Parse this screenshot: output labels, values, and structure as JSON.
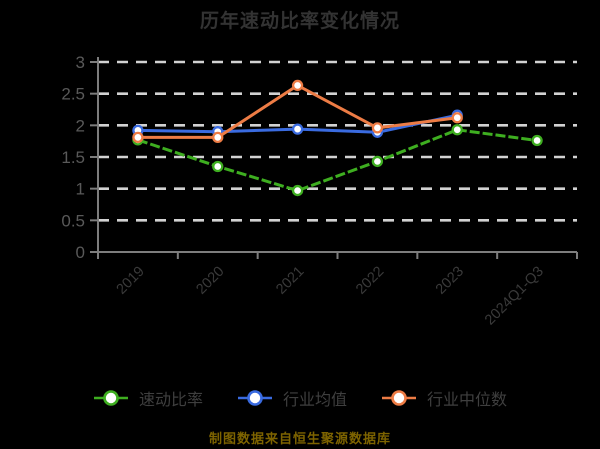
{
  "title": "历年速动比率变化情况",
  "footer": "制图数据来自恒生聚源数据库",
  "colors": {
    "background": "#000000",
    "title": "#333333",
    "grid": "#d2d2d2",
    "axis": "#7d7d7d",
    "y_tick_label": "#595959",
    "x_tick_label": "#3a3a3a",
    "legend_text": "#3f3f3f",
    "footer_text": "#7d6300",
    "marker_fill": "#ffffff"
  },
  "chart_data": {
    "type": "line",
    "title": "历年速动比率变化情况",
    "categories": [
      "2019",
      "2020",
      "2021",
      "2022",
      "2023",
      "2024Q1-Q3"
    ],
    "series": [
      {
        "name": "速动比率",
        "color": "#3eae20",
        "line_style": "dashed",
        "values": [
          1.77,
          1.35,
          0.97,
          1.43,
          1.93,
          1.76
        ]
      },
      {
        "name": "行业均值",
        "color": "#3a6be0",
        "line_style": "solid",
        "values": [
          1.92,
          1.9,
          1.94,
          1.89,
          2.16,
          null
        ]
      },
      {
        "name": "行业中位数",
        "color": "#ed7c45",
        "line_style": "solid",
        "values": [
          1.81,
          1.81,
          2.63,
          1.96,
          2.12,
          null
        ]
      }
    ],
    "ylim": [
      0,
      3
    ],
    "yticks": [
      0,
      0.5,
      1,
      1.5,
      2,
      2.5,
      3
    ],
    "grid": "horizontal-dashed",
    "legend_position": "bottom",
    "x_label_rotation": 45
  }
}
